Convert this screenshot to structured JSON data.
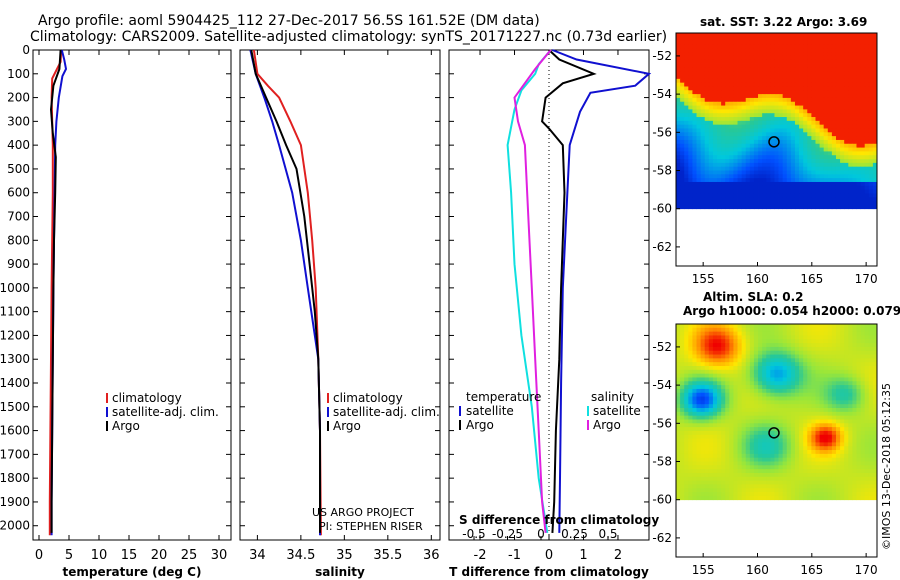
{
  "title_line1": "Argo profile: aoml 5904425_112 27-Dec-2017 56.5S 161.52E (DM data)",
  "title_line2": "Climatology: CARS2009. Satellite-adjusted climatology: synTS_20171227.nc (0.73d earlier)",
  "credit_line1": "US ARGO PROJECT",
  "credit_line2": "PI: STEPHEN RISER",
  "footer": "©IMOS 13-Dec-2018 05:12:35",
  "colors": {
    "climatology": "#e02020",
    "satellite": "#1010d0",
    "argo": "#000000",
    "sat_salinity": "#10e0e0",
    "argo_salinity_diff": "#e020e0"
  },
  "chart_data": [
    {
      "type": "line",
      "xlabel": "temperature (deg C)",
      "ylim": [
        2060,
        0
      ],
      "xlim": [
        -1,
        32
      ],
      "xticks": [
        0,
        5,
        10,
        15,
        20,
        25,
        30
      ],
      "yticks": [
        0,
        100,
        200,
        300,
        400,
        500,
        600,
        700,
        800,
        900,
        1000,
        1100,
        1200,
        1300,
        1400,
        1500,
        1600,
        1700,
        1800,
        1900,
        2000
      ],
      "legend": [
        "climatology",
        "satellite-adj. clim.",
        "Argo"
      ],
      "series": [
        {
          "name": "climatology",
          "points": [
            [
              3.7,
              0
            ],
            [
              3.6,
              50
            ],
            [
              3.0,
              80
            ],
            [
              2.2,
              120
            ],
            [
              2.1,
              200
            ],
            [
              2.2,
              300
            ],
            [
              2.3,
              400
            ],
            [
              2.3,
              600
            ],
            [
              2.2,
              800
            ],
            [
              2.1,
              1000
            ],
            [
              2.0,
              1300
            ],
            [
              1.9,
              1600
            ],
            [
              1.8,
              1900
            ],
            [
              1.8,
              2040
            ]
          ]
        },
        {
          "name": "satellite-adj. clim.",
          "points": [
            [
              3.8,
              0
            ],
            [
              4.2,
              40
            ],
            [
              4.5,
              80
            ],
            [
              3.9,
              110
            ],
            [
              3.3,
              200
            ],
            [
              2.9,
              300
            ],
            [
              2.7,
              400
            ],
            [
              2.6,
              600
            ],
            [
              2.5,
              800
            ],
            [
              2.4,
              1000
            ],
            [
              2.3,
              1300
            ],
            [
              2.2,
              1600
            ],
            [
              2.1,
              1900
            ],
            [
              2.1,
              2040
            ]
          ]
        },
        {
          "name": "Argo",
          "points": [
            [
              3.6,
              0
            ],
            [
              3.4,
              80
            ],
            [
              2.4,
              150
            ],
            [
              2.0,
              250
            ],
            [
              2.3,
              350
            ],
            [
              2.8,
              450
            ],
            [
              2.7,
              600
            ],
            [
              2.5,
              800
            ],
            [
              2.4,
              1000
            ],
            [
              2.3,
              1300
            ],
            [
              2.2,
              1600
            ],
            [
              2.1,
              1900
            ],
            [
              2.1,
              2030
            ]
          ]
        }
      ]
    },
    {
      "type": "line",
      "xlabel": "salinity",
      "ylim": [
        2060,
        0
      ],
      "xlim": [
        33.8,
        36.1
      ],
      "xticks": [
        34,
        34.5,
        35,
        35.5,
        36
      ],
      "xticklabels": [
        "34",
        "34.5",
        "35",
        "35.5",
        "36"
      ],
      "legend": [
        "climatology",
        "satellite-adj. clim.",
        "Argo"
      ],
      "series": [
        {
          "name": "climatology",
          "points": [
            [
              33.96,
              0
            ],
            [
              34.0,
              100
            ],
            [
              34.12,
              150
            ],
            [
              34.25,
              200
            ],
            [
              34.38,
              300
            ],
            [
              34.5,
              400
            ],
            [
              34.58,
              600
            ],
            [
              34.63,
              800
            ],
            [
              34.67,
              1000
            ],
            [
              34.7,
              1300
            ],
            [
              34.72,
              1600
            ],
            [
              34.73,
              2040
            ]
          ]
        },
        {
          "name": "satellite-adj. clim.",
          "points": [
            [
              33.92,
              0
            ],
            [
              33.98,
              100
            ],
            [
              34.08,
              200
            ],
            [
              34.17,
              300
            ],
            [
              34.25,
              400
            ],
            [
              34.4,
              600
            ],
            [
              34.5,
              800
            ],
            [
              34.58,
              1000
            ],
            [
              34.66,
              1200
            ],
            [
              34.7,
              1300
            ],
            [
              34.72,
              1600
            ],
            [
              34.72,
              2040
            ]
          ]
        },
        {
          "name": "Argo",
          "points": [
            [
              33.93,
              0
            ],
            [
              33.98,
              100
            ],
            [
              34.1,
              200
            ],
            [
              34.22,
              300
            ],
            [
              34.33,
              400
            ],
            [
              34.45,
              500
            ],
            [
              34.54,
              700
            ],
            [
              34.6,
              900
            ],
            [
              34.66,
              1100
            ],
            [
              34.7,
              1300
            ],
            [
              34.72,
              1600
            ],
            [
              34.72,
              2030
            ]
          ]
        }
      ]
    },
    {
      "type": "line",
      "xlabel": "T difference from climatology",
      "xlabel2": "S difference from climatology",
      "ylim": [
        2060,
        0
      ],
      "xlim": [
        -2.9,
        2.9
      ],
      "xticks": [
        -2,
        -1,
        0,
        1,
        2
      ],
      "xticks2": [
        -0.5,
        -0.25,
        0,
        0.25,
        0.5
      ],
      "xticklabels2": [
        "-0.5",
        "-0.25",
        "0",
        "0.25",
        "0.5"
      ],
      "legend_left_title": "temperature",
      "legend_right_title": "salinity",
      "legend_left": [
        "satellite",
        "Argo"
      ],
      "legend_right": [
        "satellite",
        "Argo"
      ],
      "series": [
        {
          "name": "temperature satellite",
          "points": [
            [
              0.1,
              0
            ],
            [
              0.8,
              40
            ],
            [
              2.9,
              100
            ],
            [
              2.5,
              150
            ],
            [
              1.2,
              180
            ],
            [
              0.9,
              260
            ],
            [
              0.6,
              400
            ],
            [
              0.5,
              700
            ],
            [
              0.4,
              1000
            ],
            [
              0.35,
              1400
            ],
            [
              0.32,
              1800
            ],
            [
              0.3,
              2030
            ]
          ]
        },
        {
          "name": "temperature Argo",
          "points": [
            [
              0.0,
              0
            ],
            [
              0.3,
              40
            ],
            [
              1.3,
              100
            ],
            [
              0.4,
              140
            ],
            [
              -0.1,
              200
            ],
            [
              -0.2,
              300
            ],
            [
              0.0,
              330
            ],
            [
              0.4,
              400
            ],
            [
              0.45,
              600
            ],
            [
              0.4,
              800
            ],
            [
              0.35,
              1000
            ],
            [
              0.3,
              1300
            ],
            [
              0.2,
              1600
            ],
            [
              0.15,
              1900
            ],
            [
              0.1,
              2030
            ]
          ]
        },
        {
          "name": "salinity satellite",
          "points": [
            [
              0.05,
              0
            ],
            [
              -0.3,
              60
            ],
            [
              -0.4,
              100
            ],
            [
              -0.8,
              170
            ],
            [
              -1.0,
              250
            ],
            [
              -1.2,
              400
            ],
            [
              -1.1,
              600
            ],
            [
              -1.0,
              900
            ],
            [
              -0.8,
              1200
            ],
            [
              -0.5,
              1500
            ],
            [
              -0.3,
              1800
            ],
            [
              -0.05,
              2030
            ]
          ]
        },
        {
          "name": "salinity Argo",
          "points": [
            [
              0.05,
              0
            ],
            [
              -0.4,
              80
            ],
            [
              -1.0,
              200
            ],
            [
              -0.9,
              300
            ],
            [
              -0.7,
              400
            ],
            [
              -0.6,
              700
            ],
            [
              -0.5,
              1000
            ],
            [
              -0.4,
              1300
            ],
            [
              -0.3,
              1600
            ],
            [
              -0.2,
              1900
            ],
            [
              -0.1,
              2030
            ]
          ]
        }
      ]
    }
  ],
  "map1": {
    "title": "sat. SST: 3.22 Argo: 3.69",
    "xlim": [
      152.5,
      171
    ],
    "ylim": [
      -63,
      -50.8
    ],
    "xticks": [
      155,
      160,
      165,
      170
    ],
    "yticks": [
      -52,
      -54,
      -56,
      -58,
      -60,
      -62
    ],
    "argo_lon": 161.52,
    "argo_lat": -56.5
  },
  "map2": {
    "title_line1": "Altim. SLA: 0.2",
    "title_line2": "Argo h1000: 0.054 h2000: 0.079",
    "xlim": [
      152.5,
      171
    ],
    "ylim": [
      -63,
      -50.8
    ],
    "xticks": [
      155,
      160,
      165,
      170
    ],
    "yticks": [
      -52,
      -54,
      -56,
      -58,
      -60,
      -62
    ],
    "argo_lon": 161.52,
    "argo_lat": -56.5
  }
}
